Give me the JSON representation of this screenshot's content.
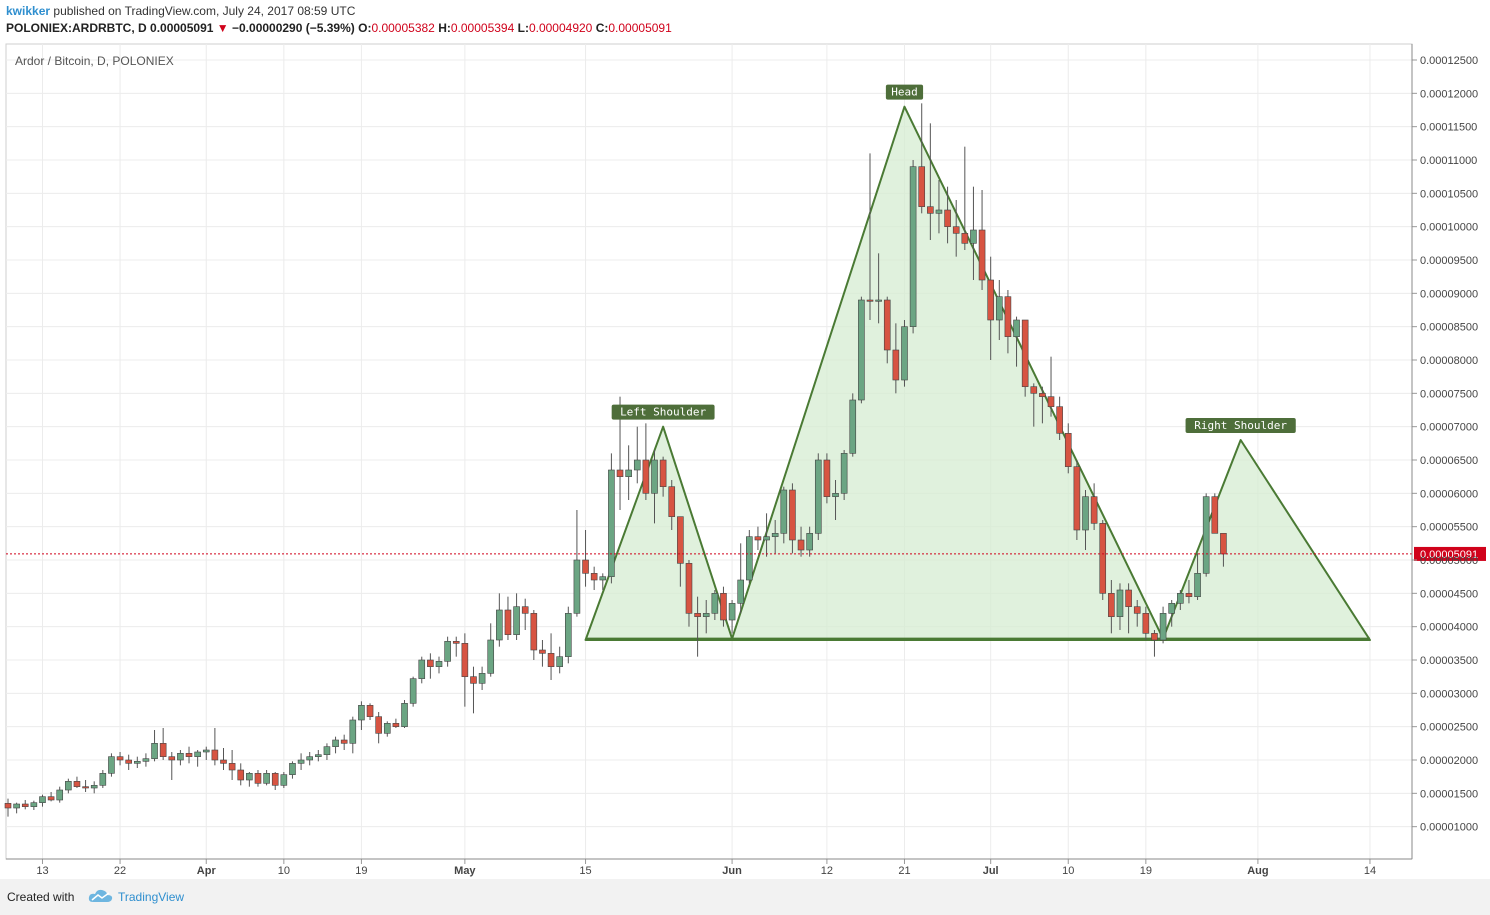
{
  "header": {
    "user": "kwikker",
    "published": "published on TradingView.com, July 24, 2017 08:59 UTC",
    "symbol": "POLONIEX:ARDRBTC, D",
    "last": "0.00005091",
    "arrow": "▼",
    "change": "−0.00000290 (−5.39%)",
    "o_label": "O:",
    "o_value": "0.00005382",
    "h_label": "H:",
    "h_value": "0.00005394",
    "l_label": "L:",
    "l_value": "0.00004920",
    "c_label": "C:",
    "c_value": "0.00005091"
  },
  "footer": {
    "created": "Created with",
    "brand": "TradingView"
  },
  "colors": {
    "up": "#6ba583",
    "down": "#d75442",
    "pattern_stroke": "#4a7a34",
    "pattern_fill": "#d6ecd1",
    "label_bg": "#4e6e3a",
    "price_line": "#d0021b"
  },
  "chart_data": {
    "type": "candlestick",
    "title": "Ardor / Bitcoin, D, POLONIEX",
    "ylim": [
      5e-06,
      0.000128
    ],
    "x_range_days": [
      0,
      184
    ],
    "x_start_note": "Day 0 = 2017-03-09",
    "y_ticks": [
      "0.00001000",
      "0.00001500",
      "0.00002000",
      "0.00002500",
      "0.00003000",
      "0.00003500",
      "0.00004000",
      "0.00004500",
      "0.00005000",
      "0.00005500",
      "0.00006000",
      "0.00006500",
      "0.00007000",
      "0.00007500",
      "0.00008000",
      "0.00008500",
      "0.00009000",
      "0.00009500",
      "0.00010000",
      "0.00010500",
      "0.00011000",
      "0.00011500",
      "0.00012000",
      "0.00012500"
    ],
    "x_ticks": [
      {
        "label": "13",
        "day": 4
      },
      {
        "label": "22",
        "day": 13
      },
      {
        "label": "Apr",
        "day": 23
      },
      {
        "label": "10",
        "day": 32
      },
      {
        "label": "19",
        "day": 41
      },
      {
        "label": "May",
        "day": 53
      },
      {
        "label": "15",
        "day": 67
      },
      {
        "label": "Jun",
        "day": 84
      },
      {
        "label": "12",
        "day": 95
      },
      {
        "label": "21",
        "day": 104
      },
      {
        "label": "Jul",
        "day": 114
      },
      {
        "label": "10",
        "day": 123
      },
      {
        "label": "19",
        "day": 132
      },
      {
        "label": "Aug",
        "day": 145
      },
      {
        "label": "14",
        "day": 158
      }
    ],
    "current_price": {
      "value": 5.091e-05,
      "label": "0.00005091"
    },
    "candles": [
      [
        1.35e-05,
        1.42e-05,
        1.15e-05,
        1.28e-05
      ],
      [
        1.28e-05,
        1.36e-05,
        1.2e-05,
        1.34e-05
      ],
      [
        1.34e-05,
        1.4e-05,
        1.26e-05,
        1.3e-05
      ],
      [
        1.3e-05,
        1.39e-05,
        1.25e-05,
        1.36e-05
      ],
      [
        1.36e-05,
        1.48e-05,
        1.3e-05,
        1.45e-05
      ],
      [
        1.45e-05,
        1.52e-05,
        1.38e-05,
        1.4e-05
      ],
      [
        1.4e-05,
        1.6e-05,
        1.36e-05,
        1.55e-05
      ],
      [
        1.55e-05,
        1.72e-05,
        1.5e-05,
        1.68e-05
      ],
      [
        1.68e-05,
        1.75e-05,
        1.58e-05,
        1.6e-05
      ],
      [
        1.6e-05,
        1.7e-05,
        1.52e-05,
        1.58e-05
      ],
      [
        1.58e-05,
        1.68e-05,
        1.5e-05,
        1.62e-05
      ],
      [
        1.62e-05,
        1.85e-05,
        1.58e-05,
        1.8e-05
      ],
      [
        1.8e-05,
        2.1e-05,
        1.75e-05,
        2.05e-05
      ],
      [
        2.05e-05,
        2.12e-05,
        1.92e-05,
        2e-05
      ],
      [
        2e-05,
        2.08e-05,
        1.85e-05,
        1.95e-05
      ],
      [
        1.95e-05,
        2.05e-05,
        1.88e-05,
        1.98e-05
      ],
      [
        1.98e-05,
        2.1e-05,
        1.9e-05,
        2.02e-05
      ],
      [
        2.02e-05,
        2.45e-05,
        1.98e-05,
        2.25e-05
      ],
      [
        2.25e-05,
        2.48e-05,
        2e-05,
        2.05e-05
      ],
      [
        2.05e-05,
        2.12e-05,
        1.7e-05,
        2e-05
      ],
      [
        2e-05,
        2.15e-05,
        1.92e-05,
        2.1e-05
      ],
      [
        2.1e-05,
        2.2e-05,
        1.95e-05,
        2.05e-05
      ],
      [
        2.05e-05,
        2.15e-05,
        1.9e-05,
        2.12e-05
      ],
      [
        2.12e-05,
        2.2e-05,
        2e-05,
        2.15e-05
      ],
      [
        2.15e-05,
        2.48e-05,
        1.92e-05,
        2e-05
      ],
      [
        2e-05,
        2.18e-05,
        1.85e-05,
        1.95e-05
      ],
      [
        1.95e-05,
        2.15e-05,
        1.7e-05,
        1.85e-05
      ],
      [
        1.85e-05,
        1.95e-05,
        1.62e-05,
        1.7e-05
      ],
      [
        1.7e-05,
        1.82e-05,
        1.6e-05,
        1.8e-05
      ],
      [
        1.8e-05,
        1.85e-05,
        1.6e-05,
        1.65e-05
      ],
      [
        1.65e-05,
        1.85e-05,
        1.62e-05,
        1.8e-05
      ],
      [
        1.8e-05,
        1.82e-05,
        1.55e-05,
        1.62e-05
      ],
      [
        1.62e-05,
        1.82e-05,
        1.58e-05,
        1.78e-05
      ],
      [
        1.78e-05,
        1.98e-05,
        1.72e-05,
        1.95e-05
      ],
      [
        1.95e-05,
        2.1e-05,
        1.85e-05,
        2e-05
      ],
      [
        2e-05,
        2.12e-05,
        1.92e-05,
        2.05e-05
      ],
      [
        2.05e-05,
        2.15e-05,
        1.98e-05,
        2.08e-05
      ],
      [
        2.08e-05,
        2.25e-05,
        2e-05,
        2.2e-05
      ],
      [
        2.2e-05,
        2.35e-05,
        2.1e-05,
        2.3e-05
      ],
      [
        2.3e-05,
        2.38e-05,
        2.15e-05,
        2.25e-05
      ],
      [
        2.25e-05,
        2.65e-05,
        2.1e-05,
        2.6e-05
      ],
      [
        2.6e-05,
        2.88e-05,
        2.45e-05,
        2.82e-05
      ],
      [
        2.82e-05,
        2.85e-05,
        2.6e-05,
        2.65e-05
      ],
      [
        2.65e-05,
        2.72e-05,
        2.25e-05,
        2.4e-05
      ],
      [
        2.4e-05,
        2.58e-05,
        2.35e-05,
        2.55e-05
      ],
      [
        2.55e-05,
        2.62e-05,
        2.48e-05,
        2.5e-05
      ],
      [
        2.5e-05,
        2.9e-05,
        2.48e-05,
        2.85e-05
      ],
      [
        2.85e-05,
        3.25e-05,
        2.8e-05,
        3.22e-05
      ],
      [
        3.22e-05,
        3.55e-05,
        3.15e-05,
        3.5e-05
      ],
      [
        3.5e-05,
        3.6e-05,
        3.22e-05,
        3.4e-05
      ],
      [
        3.4e-05,
        3.55e-05,
        3.3e-05,
        3.48e-05
      ],
      [
        3.48e-05,
        3.85e-05,
        3.4e-05,
        3.78e-05
      ],
      [
        3.78e-05,
        3.85e-05,
        3.55e-05,
        3.75e-05
      ],
      [
        3.75e-05,
        3.9e-05,
        2.8e-05,
        3.25e-05
      ],
      [
        3.25e-05,
        3.4e-05,
        2.7e-05,
        3.15e-05
      ],
      [
        3.15e-05,
        3.4e-05,
        3.05e-05,
        3.3e-05
      ],
      [
        3.3e-05,
        4.05e-05,
        3.25e-05,
        3.8e-05
      ],
      [
        3.8e-05,
        4.5e-05,
        3.7e-05,
        4.25e-05
      ],
      [
        4.25e-05,
        4.45e-05,
        3.8e-05,
        3.88e-05
      ],
      [
        3.88e-05,
        4.5e-05,
        3.8e-05,
        4.3e-05
      ],
      [
        4.3e-05,
        4.42e-05,
        3.95e-05,
        4.2e-05
      ],
      [
        4.2e-05,
        4.25e-05,
        3.5e-05,
        3.65e-05
      ],
      [
        3.65e-05,
        3.8e-05,
        3.4e-05,
        3.6e-05
      ],
      [
        3.6e-05,
        3.9e-05,
        3.2e-05,
        3.4e-05
      ],
      [
        3.4e-05,
        3.7e-05,
        3.3e-05,
        3.55e-05
      ],
      [
        3.55e-05,
        4.3e-05,
        3.45e-05,
        4.2e-05
      ],
      [
        4.2e-05,
        5.75e-05,
        4.15e-05,
        5e-05
      ],
      [
        5e-05,
        5.45e-05,
        4.6e-05,
        4.8e-05
      ],
      [
        4.8e-05,
        4.9e-05,
        4.55e-05,
        4.7e-05
      ],
      [
        4.7e-05,
        4.8e-05,
        4.55e-05,
        4.75e-05
      ],
      [
        4.75e-05,
        6.6e-05,
        4.65e-05,
        6.35e-05
      ],
      [
        6.35e-05,
        7.45e-05,
        5.75e-05,
        6.25e-05
      ],
      [
        6.25e-05,
        6.72e-05,
        5.9e-05,
        6.35e-05
      ],
      [
        6.35e-05,
        7e-05,
        6.15e-05,
        6.5e-05
      ],
      [
        6.5e-05,
        7.05e-05,
        5.9e-05,
        6e-05
      ],
      [
        6e-05,
        6.65e-05,
        5.55e-05,
        6.5e-05
      ],
      [
        6.5e-05,
        6.55e-05,
        5.95e-05,
        6.1e-05
      ],
      [
        6.1e-05,
        6.2e-05,
        5.45e-05,
        5.65e-05
      ],
      [
        5.65e-05,
        5.65e-05,
        4.6e-05,
        4.95e-05
      ],
      [
        4.95e-05,
        5e-05,
        4e-05,
        4.2e-05
      ],
      [
        4.2e-05,
        4.45e-05,
        3.55e-05,
        4.15e-05
      ],
      [
        4.15e-05,
        4.4e-05,
        3.9e-05,
        4.2e-05
      ],
      [
        4.2e-05,
        4.55e-05,
        4.1e-05,
        4.5e-05
      ],
      [
        4.5e-05,
        4.6e-05,
        4e-05,
        4.1e-05
      ],
      [
        4.1e-05,
        4.4e-05,
        3.9e-05,
        4.35e-05
      ],
      [
        4.35e-05,
        5.25e-05,
        4.2e-05,
        4.7e-05
      ],
      [
        4.7e-05,
        5.45e-05,
        4.65e-05,
        5.35e-05
      ],
      [
        5.35e-05,
        5.5e-05,
        5.15e-05,
        5.3e-05
      ],
      [
        5.3e-05,
        5.7e-05,
        5.05e-05,
        5.35e-05
      ],
      [
        5.35e-05,
        5.6e-05,
        5.1e-05,
        5.4e-05
      ],
      [
        5.4e-05,
        6.1e-05,
        5.25e-05,
        6.05e-05
      ],
      [
        6.05e-05,
        6.15e-05,
        5.1e-05,
        5.3e-05
      ],
      [
        5.3e-05,
        5.5e-05,
        5.05e-05,
        5.15e-05
      ],
      [
        5.15e-05,
        5.5e-05,
        5.05e-05,
        5.4e-05
      ],
      [
        5.4e-05,
        6.6e-05,
        5.3e-05,
        6.5e-05
      ],
      [
        6.5e-05,
        6.6e-05,
        5.85e-05,
        5.95e-05
      ],
      [
        5.95e-05,
        6.2e-05,
        5.6e-05,
        6e-05
      ],
      [
        6e-05,
        6.65e-05,
        5.9e-05,
        6.6e-05
      ],
      [
        6.6e-05,
        7.5e-05,
        6.55e-05,
        7.4e-05
      ],
      [
        7.4e-05,
        8.95e-05,
        7.35e-05,
        8.9e-05
      ],
      [
        8.9e-05,
        0.000111,
        8.6e-05,
        8.88e-05
      ],
      [
        8.88e-05,
        9.6e-05,
        8.55e-05,
        8.9e-05
      ],
      [
        8.9e-05,
        8.95e-05,
        7.95e-05,
        8.15e-05
      ],
      [
        8.15e-05,
        8.55e-05,
        7.5e-05,
        7.7e-05
      ],
      [
        7.7e-05,
        8.6e-05,
        7.6e-05,
        8.5e-05
      ],
      [
        8.5e-05,
        0.00011,
        8.4e-05,
        0.000109
      ],
      [
        0.000109,
        0.0001185,
        0.000102,
        0.000103
      ],
      [
        0.000103,
        0.0001155,
        9.8e-05,
        0.000102
      ],
      [
        0.000102,
        0.000107,
        9.9e-05,
        0.0001025
      ],
      [
        0.0001025,
        0.000106,
        9.75e-05,
        0.0001
      ],
      [
        0.0001,
        0.000104,
        9.55e-05,
        9.9e-05
      ],
      [
        9.9e-05,
        0.000112,
        9.65e-05,
        9.75e-05
      ],
      [
        9.75e-05,
        0.000106,
        9.2e-05,
        9.95e-05
      ],
      [
        9.95e-05,
        0.0001055,
        9.05e-05,
        9.2e-05
      ],
      [
        9.2e-05,
        9.55e-05,
        8e-05,
        8.6e-05
      ],
      [
        8.6e-05,
        9.2e-05,
        8.3e-05,
        8.95e-05
      ],
      [
        8.95e-05,
        9.05e-05,
        8.1e-05,
        8.35e-05
      ],
      [
        8.35e-05,
        8.65e-05,
        7.9e-05,
        8.6e-05
      ],
      [
        8.6e-05,
        8.6e-05,
        7.45e-05,
        7.6e-05
      ],
      [
        7.6e-05,
        7.65e-05,
        7e-05,
        7.5e-05
      ],
      [
        7.5e-05,
        7.6e-05,
        7.05e-05,
        7.45e-05
      ],
      [
        7.45e-05,
        8.05e-05,
        7.15e-05,
        7.3e-05
      ],
      [
        7.3e-05,
        7.45e-05,
        6.8e-05,
        6.9e-05
      ],
      [
        6.9e-05,
        7.05e-05,
        6.3e-05,
        6.4e-05
      ],
      [
        6.4e-05,
        6.5e-05,
        5.3e-05,
        5.45e-05
      ],
      [
        5.45e-05,
        6.05e-05,
        5.15e-05,
        5.95e-05
      ],
      [
        5.95e-05,
        6.15e-05,
        5.45e-05,
        5.55e-05
      ],
      [
        5.55e-05,
        5.6e-05,
        4.4e-05,
        4.5e-05
      ],
      [
        4.5e-05,
        4.7e-05,
        3.9e-05,
        4.15e-05
      ],
      [
        4.15e-05,
        4.65e-05,
        3.95e-05,
        4.55e-05
      ],
      [
        4.55e-05,
        4.65e-05,
        3.9e-05,
        4.3e-05
      ],
      [
        4.3e-05,
        4.4e-05,
        4e-05,
        4.2e-05
      ],
      [
        4.2e-05,
        4.3e-05,
        3.8e-05,
        3.9e-05
      ],
      [
        3.9e-05,
        3.95e-05,
        3.55e-05,
        3.8e-05
      ],
      [
        3.8e-05,
        4.3e-05,
        3.75e-05,
        4.2e-05
      ],
      [
        4.2e-05,
        4.4e-05,
        4e-05,
        4.35e-05
      ],
      [
        4.35e-05,
        4.55e-05,
        4.25e-05,
        4.5e-05
      ],
      [
        4.5e-05,
        4.7e-05,
        4.35e-05,
        4.45e-05
      ],
      [
        4.45e-05,
        5.1e-05,
        4.4e-05,
        4.8e-05
      ],
      [
        4.8e-05,
        6e-05,
        4.75e-05,
        5.95e-05
      ],
      [
        5.95e-05,
        6e-05,
        5.4e-05,
        5.4e-05
      ],
      [
        5.4e-05,
        5.4e-05,
        4.9e-05,
        5.09e-05
      ]
    ],
    "pattern": {
      "polygon": [
        [
          67,
          3.8e-05
        ],
        [
          76,
          7e-05
        ],
        [
          84,
          3.82e-05
        ],
        [
          104,
          0.000118
        ],
        [
          134,
          3.82e-05
        ],
        [
          143,
          6.8e-05
        ],
        [
          158,
          3.8e-05
        ]
      ],
      "neckline": [
        [
          67,
          3.82e-05
        ],
        [
          158,
          3.82e-05
        ]
      ],
      "labels": [
        {
          "text": "Left Shoulder",
          "day": 76,
          "value": 7e-05
        },
        {
          "text": "Head",
          "day": 104,
          "value": 0.000118
        },
        {
          "text": "Right Shoulder",
          "day": 143,
          "value": 6.8e-05
        }
      ]
    }
  }
}
